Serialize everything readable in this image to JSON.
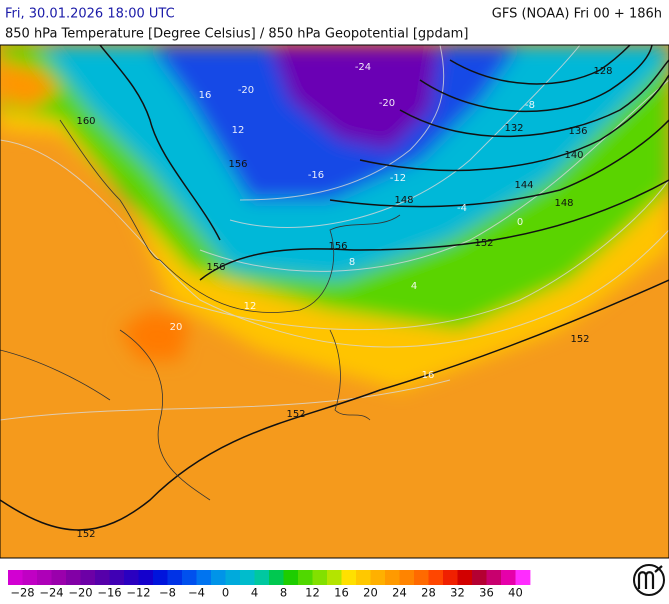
{
  "header": {
    "valid_time": "Fri, 30.01.2026 18:00 UTC",
    "model_run": "GFS (NOAA) Fri 00 + 186h",
    "title": "850 hPa Temperature [Degree Celsius] / 850 hPa Geopotential [gpdam]"
  },
  "map": {
    "geopotential_labels": [
      "152",
      "148",
      "144",
      "140",
      "136",
      "132",
      "128",
      "156",
      "160",
      "152",
      "152",
      "152",
      "148",
      "156",
      "156"
    ],
    "temperature_labels": [
      "-24",
      "-20",
      "-16",
      "-12",
      "-8",
      "-4",
      "0",
      "4",
      "8",
      "12",
      "16",
      "20",
      "-20",
      "12",
      "16"
    ]
  },
  "colorbar": {
    "labels": [
      "−28",
      "−24",
      "−20",
      "−16",
      "−12",
      "−8",
      "−4",
      "0",
      "4",
      "8",
      "12",
      "16",
      "20",
      "24",
      "28",
      "32",
      "36",
      "40"
    ],
    "colors": [
      "#d200d2",
      "#c000c4",
      "#ae00b8",
      "#9a00ac",
      "#8200a6",
      "#6c00a6",
      "#5600aa",
      "#4000b4",
      "#2a00c0",
      "#1400cc",
      "#0014dc",
      "#0032e6",
      "#0050ee",
      "#0074f0",
      "#0094e8",
      "#00aadc",
      "#00bccc",
      "#00c8a0",
      "#00c850",
      "#1ecd00",
      "#50d800",
      "#82e000",
      "#b4e400",
      "#ffe000",
      "#ffc800",
      "#ffb000",
      "#ff9a00",
      "#ff8400",
      "#ff6a00",
      "#ff4600",
      "#f02000",
      "#d20000",
      "#b40032",
      "#c8006e",
      "#e600aa",
      "#ff2cff"
    ]
  }
}
